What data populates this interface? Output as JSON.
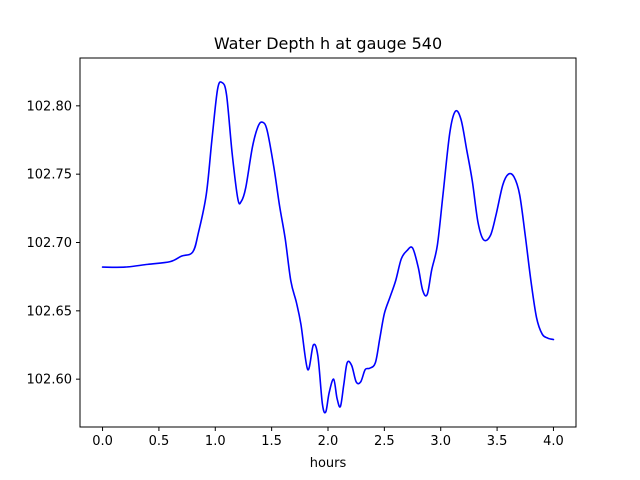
{
  "chart_data": {
    "type": "line",
    "title": "Water Depth h at gauge 540",
    "xlabel": "hours",
    "ylabel": "",
    "xlim": [
      -0.2,
      4.2
    ],
    "ylim": [
      102.565,
      102.835
    ],
    "xticks": [
      0.0,
      0.5,
      1.0,
      1.5,
      2.0,
      2.5,
      3.0,
      3.5,
      4.0
    ],
    "xtick_labels": [
      "0.0",
      "0.5",
      "1.0",
      "1.5",
      "2.0",
      "2.5",
      "3.0",
      "3.5",
      "4.0"
    ],
    "yticks": [
      102.6,
      102.65,
      102.7,
      102.75,
      102.8
    ],
    "ytick_labels": [
      "102.60",
      "102.65",
      "102.70",
      "102.75",
      "102.80"
    ],
    "grid": false,
    "series": [
      {
        "color": "#0000ff",
        "x": [
          0.0,
          0.2,
          0.4,
          0.6,
          0.7,
          0.8,
          0.85,
          0.92,
          0.97,
          1.02,
          1.06,
          1.1,
          1.15,
          1.2,
          1.23,
          1.27,
          1.33,
          1.38,
          1.42,
          1.46,
          1.52,
          1.57,
          1.62,
          1.67,
          1.72,
          1.76,
          1.82,
          1.87,
          1.91,
          1.95,
          1.98,
          2.01,
          2.05,
          2.08,
          2.11,
          2.14,
          2.17,
          2.21,
          2.25,
          2.29,
          2.33,
          2.37,
          2.42,
          2.46,
          2.5,
          2.55,
          2.6,
          2.65,
          2.7,
          2.75,
          2.8,
          2.84,
          2.88,
          2.92,
          2.97,
          3.02,
          3.08,
          3.13,
          3.18,
          3.23,
          3.28,
          3.33,
          3.38,
          3.44,
          3.49,
          3.55,
          3.6,
          3.65,
          3.7,
          3.75,
          3.8,
          3.85,
          3.9,
          3.95,
          4.0
        ],
        "y": [
          102.682,
          102.682,
          102.684,
          102.686,
          102.69,
          102.693,
          102.707,
          102.735,
          102.775,
          102.812,
          102.817,
          102.808,
          102.765,
          102.732,
          102.73,
          102.74,
          102.77,
          102.785,
          102.788,
          102.782,
          102.755,
          102.727,
          102.703,
          102.672,
          102.656,
          102.64,
          102.607,
          102.625,
          102.617,
          102.582,
          102.576,
          102.59,
          102.6,
          102.586,
          102.58,
          102.596,
          102.612,
          102.61,
          102.598,
          102.598,
          102.607,
          102.608,
          102.612,
          102.63,
          102.648,
          102.66,
          102.672,
          102.688,
          102.694,
          102.696,
          102.682,
          102.665,
          102.662,
          102.68,
          102.698,
          102.735,
          102.78,
          102.796,
          102.79,
          102.768,
          102.745,
          102.715,
          102.702,
          102.705,
          102.72,
          102.742,
          102.75,
          102.748,
          102.735,
          102.705,
          102.672,
          102.645,
          102.633,
          102.63,
          102.629
        ]
      }
    ]
  }
}
